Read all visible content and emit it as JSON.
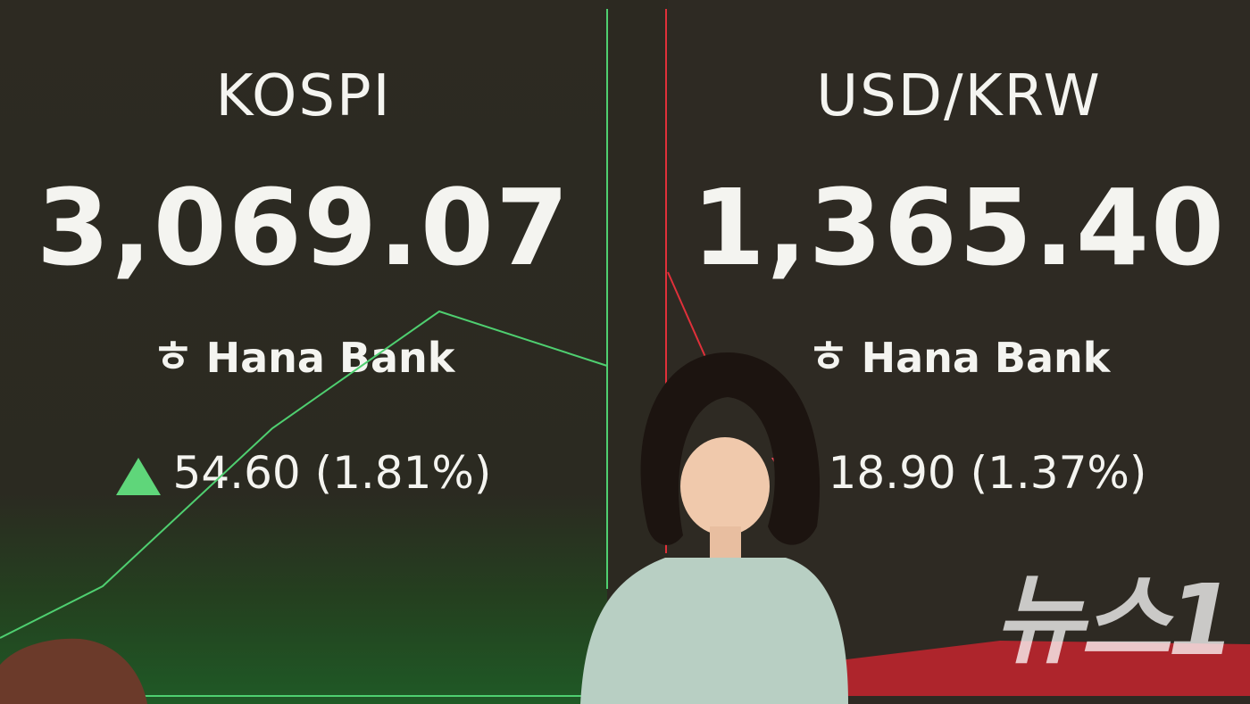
{
  "left_board": {
    "title": "KOSPI",
    "value": "3,069.07",
    "brand": "Hana Bank",
    "brand_mark": "ㅎ",
    "change": "54.60 (1.81%)",
    "direction": "up",
    "color": "#5fd67a"
  },
  "right_board": {
    "title": "USD/KRW",
    "value": "1,365.40",
    "brand": "Hana Bank",
    "brand_mark": "ㅎ",
    "change": "18.90 (1.37%)",
    "direction": "down",
    "color": "#ff4a5a"
  },
  "watermark": "뉴스1"
}
